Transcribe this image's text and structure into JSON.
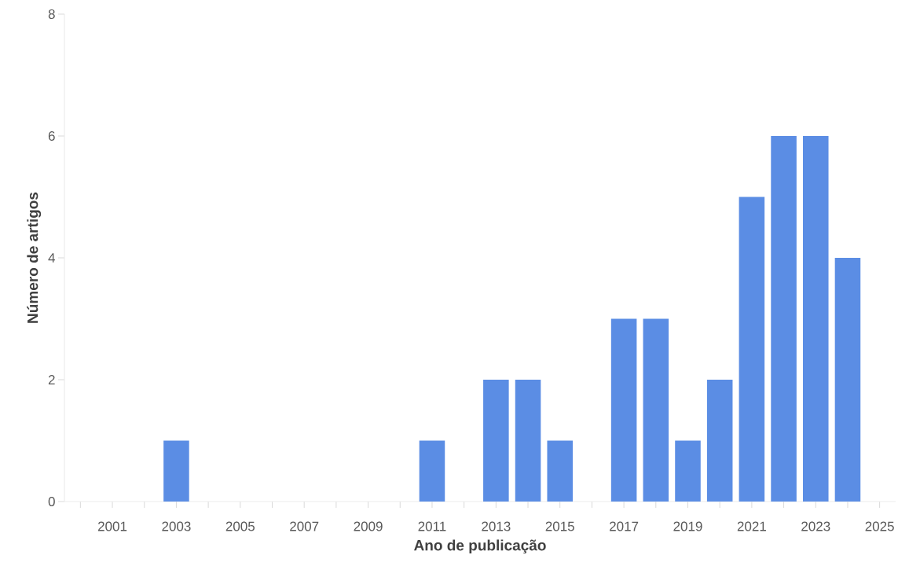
{
  "chart_data": {
    "type": "bar",
    "xlabel": "Ano de publicação",
    "ylabel": "Número de artigos",
    "x": [
      2003,
      2011,
      2013,
      2014,
      2015,
      2017,
      2018,
      2019,
      2020,
      2021,
      2022,
      2023,
      2024
    ],
    "values": [
      1,
      1,
      2,
      2,
      1,
      3,
      3,
      1,
      2,
      5,
      6,
      6,
      4
    ],
    "color": "#5b8de4",
    "xlim": [
      1999.5,
      2025.5
    ],
    "xticks": [
      {
        "value": 2000,
        "label": null
      },
      2001,
      {
        "value": 2002,
        "label": null
      },
      2003,
      {
        "value": 2004,
        "label": null
      },
      2005,
      {
        "value": 2006,
        "label": null
      },
      2007,
      {
        "value": 2008,
        "label": null
      },
      2009,
      {
        "value": 2010,
        "label": null
      },
      2011,
      {
        "value": 2012,
        "label": null
      },
      2013,
      {
        "value": 2014,
        "label": null
      },
      2015,
      {
        "value": 2016,
        "label": null
      },
      2017,
      {
        "value": 2018,
        "label": null
      },
      2019,
      {
        "value": 2020,
        "label": null
      },
      2021,
      {
        "value": 2022,
        "label": null
      },
      2023,
      {
        "value": 2024,
        "label": null
      },
      2025
    ],
    "ylim": [
      0,
      8
    ],
    "yticks": [
      0,
      2,
      4,
      6,
      8
    ],
    "grid": false
  }
}
